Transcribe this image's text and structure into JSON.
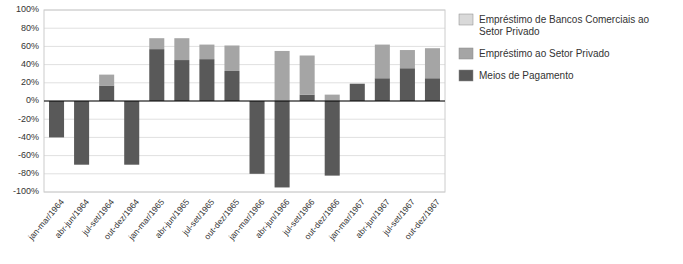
{
  "chart_data": {
    "type": "bar",
    "stacked": true,
    "grid": true,
    "legend": "right",
    "categories": [
      "jan-mar/1964",
      "abr-jun/1964",
      "jul-set/1964",
      "out-dez/1964",
      "jan-mar/1965",
      "abr-jun/1965",
      "jul-set/1965",
      "out-dez/1965",
      "jan-mar/1966",
      "abr-jun/1966",
      "jul-set/1966",
      "out-dez/1966",
      "jan-mar/1967",
      "abr-jun/1967",
      "jul-set/1967",
      "out-dez/1967"
    ],
    "series": [
      {
        "name": "Meios de Pagamento",
        "color": "#595959",
        "values": [
          -40,
          -70,
          17,
          -70,
          57,
          45,
          46,
          33,
          -80,
          -95,
          7,
          -82,
          19,
          25,
          36,
          25
        ]
      },
      {
        "name": "Empréstimo ao Setor Privado",
        "color": "#a5a5a5",
        "values": [
          0,
          0,
          12,
          0,
          12,
          24,
          16,
          28,
          0,
          55,
          43,
          7,
          0,
          37,
          20,
          33
        ]
      },
      {
        "name": "Empréstimo de Bancos Comerciais ao\nSetor Privado",
        "color": "#d9d9d9",
        "values": [
          0,
          0,
          0,
          0,
          0,
          0,
          0,
          0,
          0,
          0,
          0,
          0,
          0,
          0,
          0,
          0
        ]
      }
    ],
    "ylim": [
      -100,
      100
    ],
    "yticks": [
      {
        "value": -100,
        "label": "-100%"
      },
      {
        "value": -80,
        "label": "-80%"
      },
      {
        "value": -60,
        "label": "-60%"
      },
      {
        "value": -40,
        "label": "-40%"
      },
      {
        "value": -20,
        "label": "-20%"
      },
      {
        "value": 0,
        "label": "0%"
      },
      {
        "value": 20,
        "label": "20%"
      },
      {
        "value": 40,
        "label": "40%"
      },
      {
        "value": 60,
        "label": "60%"
      },
      {
        "value": 80,
        "label": "80%"
      },
      {
        "value": 100,
        "label": "100%"
      }
    ]
  }
}
